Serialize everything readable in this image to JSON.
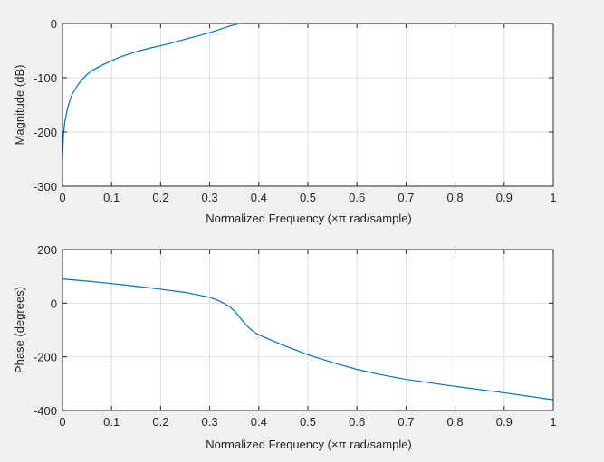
{
  "figure": {
    "background_color": "#f0f0f0",
    "axes_background_color": "#ffffff",
    "axis_color": "#262626",
    "grid_color": "#dfdfdf",
    "line_color": "#0072bd"
  },
  "chart_data": [
    {
      "type": "line",
      "xlabel": "Normalized Frequency  (×π rad/sample)",
      "ylabel": "Magnitude (dB)",
      "xlim": [
        0,
        1
      ],
      "ylim": [
        -300,
        0
      ],
      "grid": true,
      "x_ticks": [
        0,
        0.1,
        0.2,
        0.3,
        0.4,
        0.5,
        0.6,
        0.7,
        0.8,
        0.9,
        1
      ],
      "x_tick_labels": [
        "0",
        "0.1",
        "0.2",
        "0.3",
        "0.4",
        "0.5",
        "0.6",
        "0.7",
        "0.8",
        "0.9",
        "1"
      ],
      "y_ticks": [
        0,
        -100,
        -200,
        -300
      ],
      "y_tick_labels": [
        "0",
        "-100",
        "-200",
        "-300"
      ],
      "series": [
        {
          "x": [
            0.0,
            0.002,
            0.005,
            0.01,
            0.015,
            0.02,
            0.03,
            0.04,
            0.05,
            0.06,
            0.08,
            0.1,
            0.12,
            0.15,
            0.18,
            0.2,
            0.22,
            0.25,
            0.28,
            0.3,
            0.32,
            0.33,
            0.34,
            0.35,
            0.36,
            0.37,
            0.38,
            0.39,
            0.4,
            0.45,
            0.5,
            0.6,
            0.7,
            0.8,
            0.9,
            1.0
          ],
          "y": [
            -250,
            -205,
            -180,
            -158,
            -142,
            -130,
            -115,
            -103,
            -94,
            -87,
            -77,
            -68.5,
            -61,
            -52,
            -45,
            -41,
            -36.5,
            -29,
            -22,
            -17,
            -11,
            -8,
            -5,
            -2.5,
            -0.5,
            0,
            0,
            0,
            0,
            -0.5,
            -0.5,
            -0.5,
            -0.5,
            -0.5,
            -0.5,
            -0.5
          ]
        }
      ]
    },
    {
      "type": "line",
      "xlabel": "Normalized Frequency  (×π rad/sample)",
      "ylabel": "Phase (degrees)",
      "xlim": [
        0,
        1
      ],
      "ylim": [
        -400,
        200
      ],
      "grid": true,
      "x_ticks": [
        0,
        0.1,
        0.2,
        0.3,
        0.4,
        0.5,
        0.6,
        0.7,
        0.8,
        0.9,
        1
      ],
      "x_tick_labels": [
        "0",
        "0.1",
        "0.2",
        "0.3",
        "0.4",
        "0.5",
        "0.6",
        "0.7",
        "0.8",
        "0.9",
        "1"
      ],
      "y_ticks": [
        200,
        0,
        -200,
        -400
      ],
      "y_tick_labels": [
        "200",
        "0",
        "-200",
        "-400"
      ],
      "series": [
        {
          "x": [
            0.0,
            0.05,
            0.1,
            0.15,
            0.2,
            0.25,
            0.3,
            0.32,
            0.34,
            0.35,
            0.36,
            0.37,
            0.38,
            0.39,
            0.4,
            0.42,
            0.45,
            0.5,
            0.55,
            0.6,
            0.65,
            0.7,
            0.8,
            0.9,
            1.0
          ],
          "y": [
            90,
            82,
            73,
            63,
            52,
            40,
            22,
            8,
            -12,
            -28,
            -50,
            -72,
            -92,
            -107,
            -118,
            -134,
            -157,
            -192,
            -221,
            -247,
            -267,
            -284,
            -310,
            -334,
            -360
          ]
        }
      ]
    }
  ]
}
